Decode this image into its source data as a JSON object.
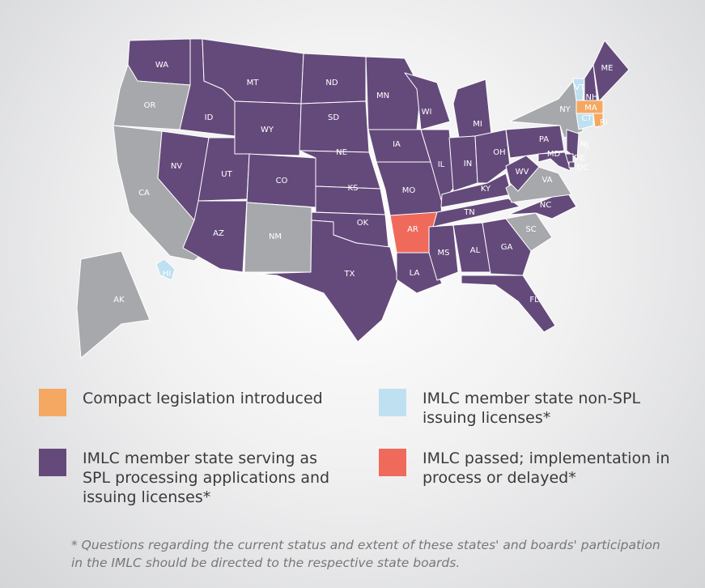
{
  "legend": [
    {
      "label": "Compact legislation introduced",
      "color": "#f5a862"
    },
    {
      "label": "IMLC member state non-SPL issuing licenses*",
      "color": "#bfe0f1"
    },
    {
      "label": "IMLC member state serving as SPL processing applications and issuing licenses*",
      "color": "#644a7b"
    },
    {
      "label": "IMLC passed; implementation in process or delayed*",
      "color": "#f06a5b"
    }
  ],
  "non_member_color": "#a6a8ab",
  "states": [
    {
      "name": "WA",
      "status": 2
    },
    {
      "name": "OR",
      "status": null
    },
    {
      "name": "ID",
      "status": 2
    },
    {
      "name": "CA",
      "status": null
    },
    {
      "name": "NV",
      "status": 2
    },
    {
      "name": "MT",
      "status": 2
    },
    {
      "name": "WY",
      "status": 2
    },
    {
      "name": "UT",
      "status": 2
    },
    {
      "name": "AZ",
      "status": 2
    },
    {
      "name": "CO",
      "status": 2
    },
    {
      "name": "NM",
      "status": null
    },
    {
      "name": "ND",
      "status": 2
    },
    {
      "name": "SD",
      "status": 2
    },
    {
      "name": "NE",
      "status": 2
    },
    {
      "name": "KS",
      "status": 2
    },
    {
      "name": "OK",
      "status": 2
    },
    {
      "name": "TX",
      "status": 2
    },
    {
      "name": "MN",
      "status": 2
    },
    {
      "name": "IA",
      "status": 2
    },
    {
      "name": "MO",
      "status": 2
    },
    {
      "name": "AR",
      "status": 3
    },
    {
      "name": "LA",
      "status": 2
    },
    {
      "name": "WI",
      "status": 2
    },
    {
      "name": "IL",
      "status": 2
    },
    {
      "name": "MI",
      "status": 2
    },
    {
      "name": "IN",
      "status": 2
    },
    {
      "name": "OH",
      "status": 2
    },
    {
      "name": "KY",
      "status": 2
    },
    {
      "name": "TN",
      "status": 2
    },
    {
      "name": "MS",
      "status": 2
    },
    {
      "name": "AL",
      "status": 2
    },
    {
      "name": "GA",
      "status": 2
    },
    {
      "name": "FL",
      "status": 2
    },
    {
      "name": "SC",
      "status": null
    },
    {
      "name": "NC",
      "status": 2
    },
    {
      "name": "VA",
      "status": null
    },
    {
      "name": "WV",
      "status": 2
    },
    {
      "name": "PA",
      "status": 2
    },
    {
      "name": "NY",
      "status": null
    },
    {
      "name": "VT",
      "status": 1
    },
    {
      "name": "NH",
      "status": 2
    },
    {
      "name": "ME",
      "status": 2
    },
    {
      "name": "MA",
      "status": 0
    },
    {
      "name": "CT",
      "status": 1
    },
    {
      "name": "RI",
      "status": 0
    },
    {
      "name": "NJ",
      "status": 2
    },
    {
      "name": "DE",
      "status": 2
    },
    {
      "name": "MD",
      "status": 2
    },
    {
      "name": "DC",
      "status": 2
    },
    {
      "name": "AK",
      "status": null
    },
    {
      "name": "HI",
      "status": 1
    }
  ],
  "footnote": "* Questions regarding the current status and extent of these states' and boards' participation in the IMLC should be directed to the respective state boards."
}
